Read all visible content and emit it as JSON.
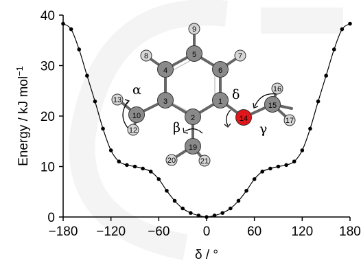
{
  "chart_data": {
    "type": "line",
    "xlabel": "δ / °",
    "ylabel": "Energy / kJ mol",
    "ylabel_sup": "−1",
    "xlim": [
      -180,
      180
    ],
    "ylim": [
      0,
      40
    ],
    "xticks": [
      -180,
      -120,
      -60,
      0,
      60,
      120,
      180
    ],
    "xtick_labels": [
      "−180",
      "−120",
      "−60",
      "0",
      "60",
      "120",
      "180"
    ],
    "yticks": [
      0,
      10,
      20,
      30,
      40
    ],
    "ytick_labels": [
      "0",
      "10",
      "20",
      "30",
      "40"
    ],
    "grid": false,
    "series": [
      {
        "x": [
          -180,
          -170,
          -160,
          -150,
          -140,
          -130,
          -120,
          -110,
          -100,
          -90,
          -80,
          -70,
          -60,
          -50,
          -40,
          -30,
          -20,
          -10,
          0,
          10,
          20,
          30,
          40,
          50,
          60,
          70,
          80,
          90,
          100,
          110,
          120,
          130,
          140,
          150,
          160,
          170,
          180
        ],
        "y": [
          38.3,
          37.2,
          33.2,
          28.0,
          22.9,
          17.5,
          13.2,
          11.0,
          10.3,
          10.0,
          9.6,
          9.0,
          7.5,
          5.2,
          3.2,
          1.7,
          0.8,
          0.3,
          0.0,
          0.3,
          0.8,
          1.7,
          3.2,
          5.2,
          7.5,
          9.0,
          9.6,
          10.0,
          10.3,
          11.0,
          13.2,
          17.5,
          22.9,
          28.0,
          33.2,
          37.2,
          38.3
        ]
      }
    ],
    "annotations": {
      "angles": [
        "α",
        "β",
        "γ",
        "δ"
      ],
      "atoms": [
        "1",
        "2",
        "3",
        "4",
        "5",
        "6",
        "7",
        "8",
        "9",
        "10",
        "12",
        "13",
        "14",
        "15",
        "16",
        "17",
        "19",
        "20",
        "21"
      ]
    }
  }
}
